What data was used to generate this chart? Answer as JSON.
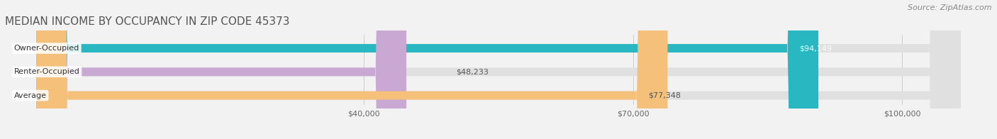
{
  "title": "Median Income by Occupancy in Zip Code 45373",
  "source": "Source: ZipAtlas.com",
  "categories": [
    "Owner-Occupied",
    "Renter-Occupied",
    "Average"
  ],
  "values": [
    94149,
    48233,
    77348
  ],
  "labels": [
    "$94,149",
    "$48,233",
    "$77,348"
  ],
  "bar_colors": [
    "#29b8c2",
    "#c9a8d4",
    "#f5c07a"
  ],
  "label_text_colors": [
    "#ffffff",
    "#333333",
    "#555555"
  ],
  "xmin": 0,
  "xmax": 110000,
  "xticks": [
    40000,
    70000,
    100000
  ],
  "xticklabels": [
    "$40,000",
    "$70,000",
    "$100,000"
  ],
  "background_color": "#f2f2f2",
  "bar_bg_color": "#e0e0e0",
  "title_fontsize": 11,
  "source_fontsize": 8,
  "label_fontsize": 8,
  "category_fontsize": 8,
  "tick_fontsize": 8
}
